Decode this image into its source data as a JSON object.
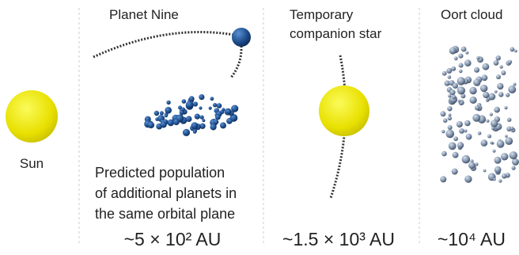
{
  "sun": {
    "label": "Sun"
  },
  "planet_nine": {
    "title": "Planet Nine",
    "description": [
      "Predicted population",
      "of additional planets in",
      "the same orbital plane"
    ],
    "distance": "~5 × 10² AU"
  },
  "companion": {
    "title": [
      "Temporary",
      "companion star"
    ],
    "distance": "~1.5 × 10³ AU"
  },
  "oort": {
    "title": "Oort cloud",
    "distance": "~10⁴ AU"
  }
}
